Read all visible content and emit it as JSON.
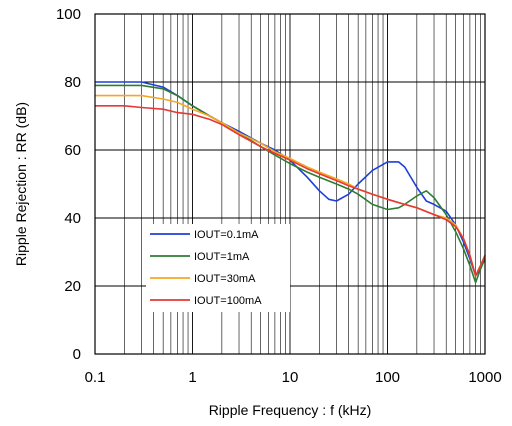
{
  "chart_data": {
    "type": "line",
    "xlabel": "Ripple Frequency : f (kHz)",
    "ylabel": "Ripple Rejection : RR (dB)",
    "x_scale": "log",
    "xlim": [
      0.1,
      1000
    ],
    "ylim": [
      0,
      100
    ],
    "x_ticks": [
      {
        "value": 0.1,
        "label": "0.1"
      },
      {
        "value": 1,
        "label": "1"
      },
      {
        "value": 10,
        "label": "10"
      },
      {
        "value": 100,
        "label": "100"
      },
      {
        "value": 1000,
        "label": "1000"
      }
    ],
    "y_ticks": [
      {
        "value": 0,
        "label": "0"
      },
      {
        "value": 20,
        "label": "20"
      },
      {
        "value": 40,
        "label": "40"
      },
      {
        "value": 60,
        "label": "60"
      },
      {
        "value": 80,
        "label": "80"
      },
      {
        "value": 100,
        "label": "100"
      }
    ],
    "grid": true,
    "legend_position": "lower-left",
    "series": [
      {
        "name": "IOUT=0.1mA",
        "color": "#1f3fd8",
        "x": [
          0.1,
          0.2,
          0.3,
          0.5,
          0.7,
          1,
          1.5,
          2,
          3,
          5,
          7,
          10,
          15,
          20,
          25,
          30,
          40,
          50,
          70,
          100,
          130,
          150,
          200,
          250,
          300,
          400,
          500,
          600,
          700,
          800,
          900,
          1000
        ],
        "y": [
          80,
          80,
          80,
          78.5,
          76,
          73,
          70,
          68,
          65.5,
          62,
          60,
          57,
          52,
          48,
          45.5,
          45,
          47,
          50,
          54,
          56.5,
          56.5,
          55,
          49,
          45,
          44,
          42,
          38,
          33,
          28,
          23,
          25,
          29
        ]
      },
      {
        "name": "IOUT=1mA",
        "color": "#2e7d32",
        "x": [
          0.1,
          0.2,
          0.3,
          0.5,
          0.7,
          1,
          1.5,
          2,
          3,
          5,
          7,
          10,
          15,
          20,
          30,
          40,
          50,
          70,
          100,
          130,
          150,
          200,
          250,
          300,
          400,
          500,
          600,
          700,
          800,
          900,
          1000
        ],
        "y": [
          79,
          79,
          79,
          78,
          76,
          73,
          70,
          68,
          65,
          61,
          58.5,
          56,
          53.5,
          52,
          50,
          48.5,
          47,
          44,
          42.5,
          43,
          44,
          46.5,
          48,
          46,
          41,
          36,
          31,
          26,
          21,
          25,
          28
        ]
      },
      {
        "name": "IOUT=30mA",
        "color": "#f5a623",
        "x": [
          0.1,
          0.2,
          0.3,
          0.5,
          0.7,
          1,
          1.5,
          2,
          3,
          5,
          7,
          10,
          15,
          20,
          30,
          40,
          50,
          70,
          100,
          150,
          200,
          300,
          400,
          500,
          600,
          700,
          800,
          900,
          1000
        ],
        "y": [
          76,
          76,
          76,
          75,
          74,
          72,
          70,
          68,
          65,
          62,
          59.5,
          57.5,
          55,
          53.5,
          51.5,
          50,
          48.5,
          47,
          45.5,
          44,
          43,
          41,
          40,
          38,
          34,
          29,
          23,
          26,
          29
        ]
      },
      {
        "name": "IOUT=100mA",
        "color": "#e53935",
        "x": [
          0.1,
          0.2,
          0.3,
          0.5,
          0.7,
          1,
          1.5,
          2,
          3,
          5,
          7,
          10,
          15,
          20,
          30,
          40,
          50,
          70,
          100,
          150,
          200,
          300,
          400,
          500,
          600,
          700,
          800,
          900,
          1000
        ],
        "y": [
          73,
          73,
          72.5,
          72,
          71,
          70.5,
          69,
          67.5,
          64.5,
          61,
          59,
          57,
          54.5,
          53,
          51,
          49.5,
          48.5,
          47,
          45.5,
          44,
          43,
          41,
          39.5,
          37.5,
          34,
          29,
          23,
          26,
          29
        ]
      }
    ]
  }
}
